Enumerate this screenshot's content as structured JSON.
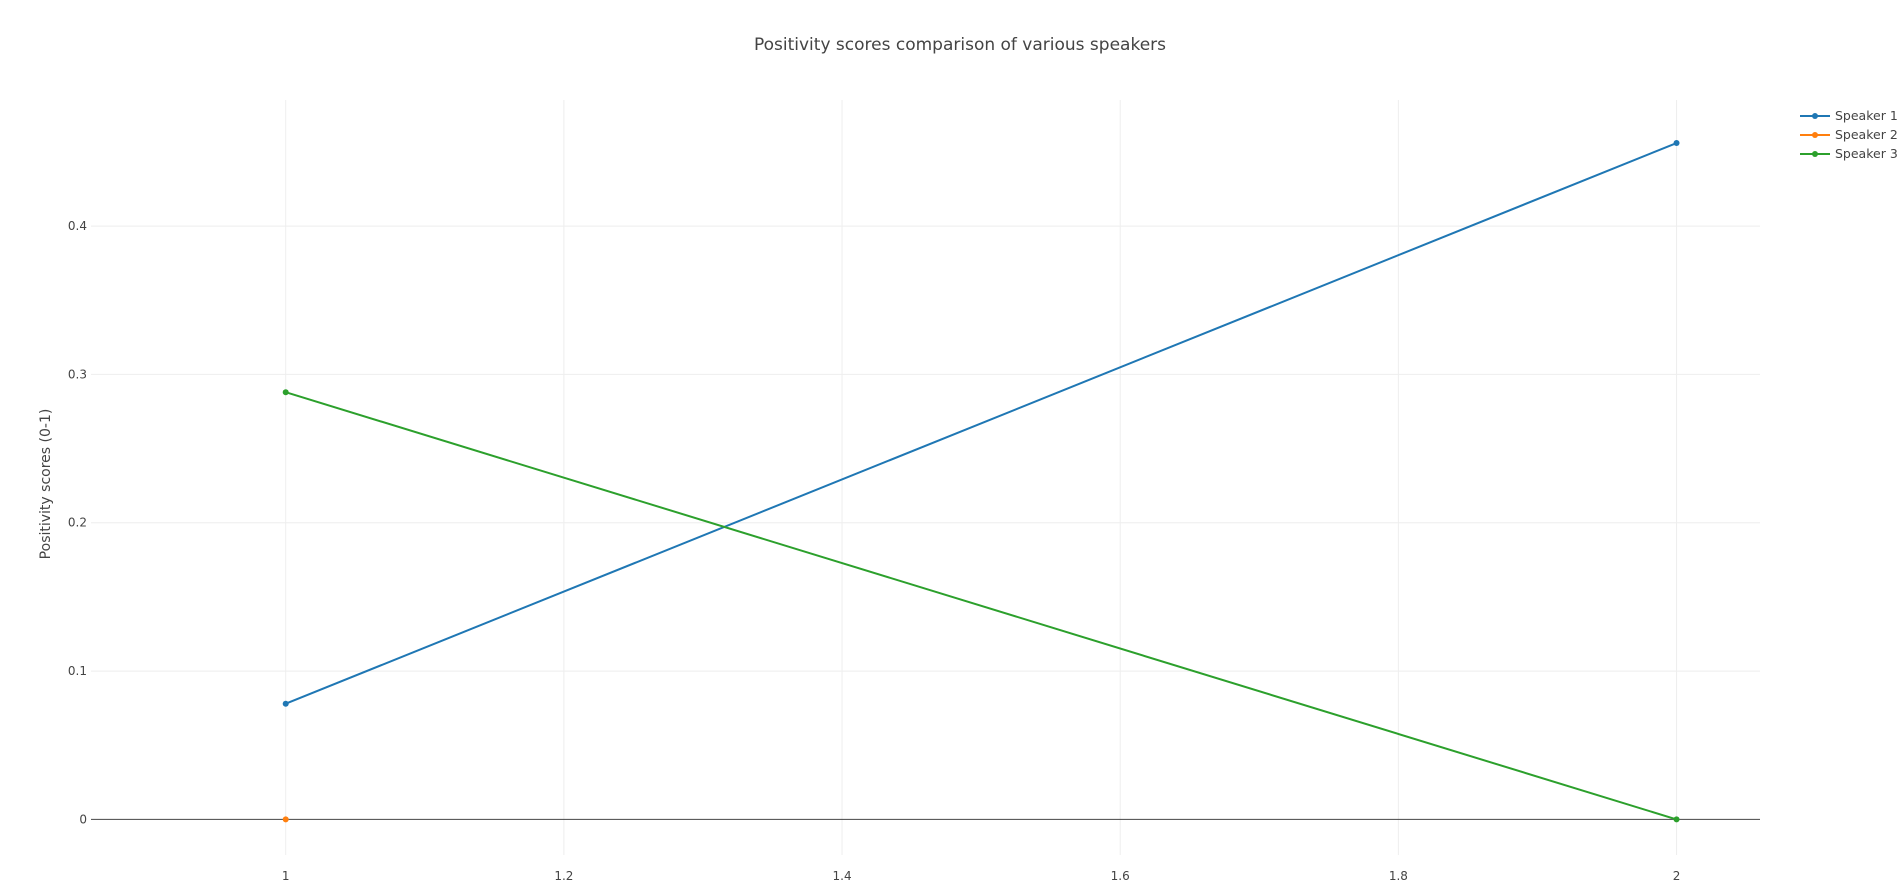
{
  "chart_data": {
    "type": "line",
    "title": "Positivity scores comparison of various speakers",
    "xlabel": "",
    "ylabel": "Positivity scores (0-1)",
    "xlim": [
      0.86,
      2.06
    ],
    "ylim": [
      -0.024,
      0.485
    ],
    "x_ticks": [
      {
        "value": 1,
        "label": "1"
      },
      {
        "value": 1.2,
        "label": "1.2"
      },
      {
        "value": 1.4,
        "label": "1.4"
      },
      {
        "value": 1.6,
        "label": "1.6"
      },
      {
        "value": 1.8,
        "label": "1.8"
      },
      {
        "value": 2,
        "label": "2"
      }
    ],
    "y_ticks": [
      {
        "value": 0,
        "label": "0"
      },
      {
        "value": 0.1,
        "label": "0.1"
      },
      {
        "value": 0.2,
        "label": "0.2"
      },
      {
        "value": 0.3,
        "label": "0.3"
      },
      {
        "value": 0.4,
        "label": "0.4"
      }
    ],
    "grid": true,
    "legend_position": "top-right",
    "series": [
      {
        "name": "Speaker 1",
        "color": "#1f77b4",
        "x": [
          1,
          2
        ],
        "y": [
          0.078,
          0.456
        ]
      },
      {
        "name": "Speaker 2",
        "color": "#ff7f0e",
        "x": [
          1
        ],
        "y": [
          0
        ]
      },
      {
        "name": "Speaker 3",
        "color": "#2ca02c",
        "x": [
          1,
          2
        ],
        "y": [
          0.288,
          0
        ]
      }
    ]
  }
}
